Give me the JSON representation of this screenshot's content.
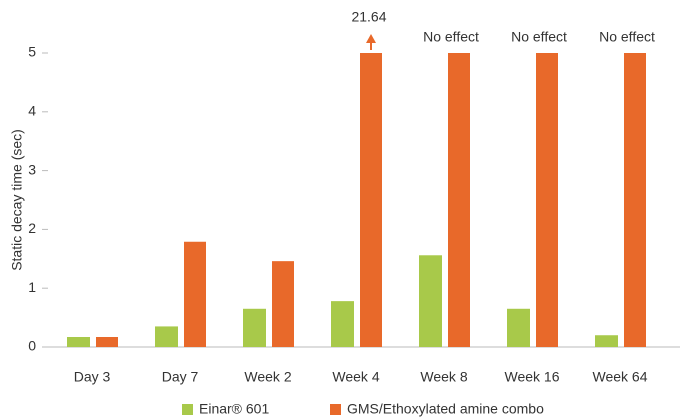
{
  "chart_data": {
    "type": "bar",
    "y_label": "Static decay time (sec)",
    "categories": [
      "Day 3",
      "Day 7",
      "Week 2",
      "Week 4",
      "Week 8",
      "Week 16",
      "Week 64"
    ],
    "series": [
      {
        "name": "Einar® 601",
        "color": "#a8c94a",
        "values": [
          0.17,
          0.35,
          0.65,
          0.78,
          1.56,
          0.65,
          0.2
        ]
      },
      {
        "name": "GMS/Ethoxylated amine combo",
        "color": "#e8692a",
        "values": [
          0.17,
          1.79,
          1.46,
          21.64,
          null,
          null,
          null
        ],
        "value_labels": [
          null,
          null,
          null,
          "21.64",
          "No effect",
          "No effect",
          "No effect"
        ]
      }
    ],
    "ylim": [
      0,
      5
    ],
    "yticks": [
      0,
      1,
      2,
      3,
      4,
      5
    ],
    "grid": false
  }
}
